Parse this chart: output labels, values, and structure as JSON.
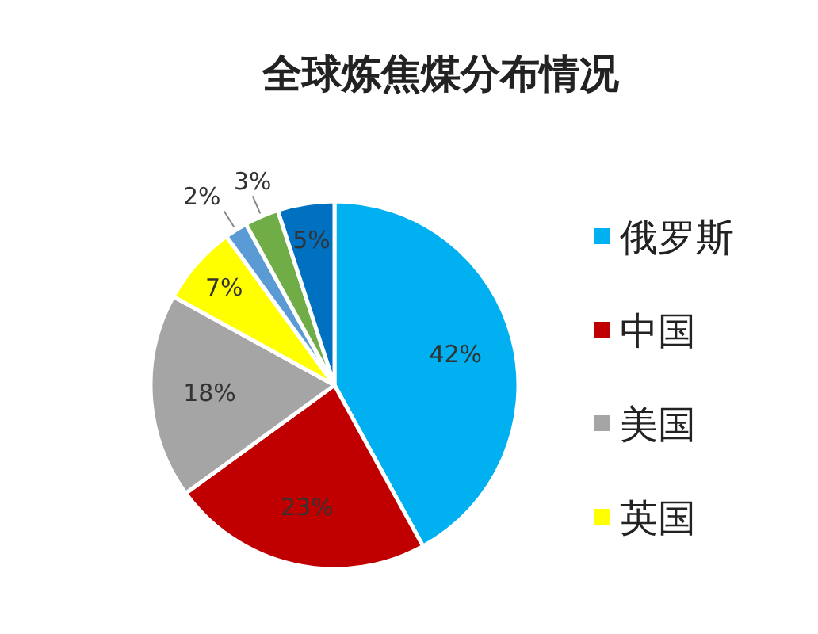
{
  "chart_data": {
    "type": "pie",
    "title": "全球炼焦煤分布情况",
    "categories": [
      "俄罗斯",
      "中国",
      "美国",
      "英国",
      null,
      null,
      null
    ],
    "values": [
      42,
      23,
      18,
      7,
      2,
      3,
      5
    ],
    "colors": [
      "#00b0f0",
      "#c00000",
      "#a5a5a5",
      "#ffff00",
      "#5b9bd5",
      "#70ad47",
      "#0070c0"
    ],
    "value_labels": [
      "42%",
      "23%",
      "18%",
      "7%",
      "2%",
      "3%",
      "5%"
    ],
    "legend": "right"
  }
}
